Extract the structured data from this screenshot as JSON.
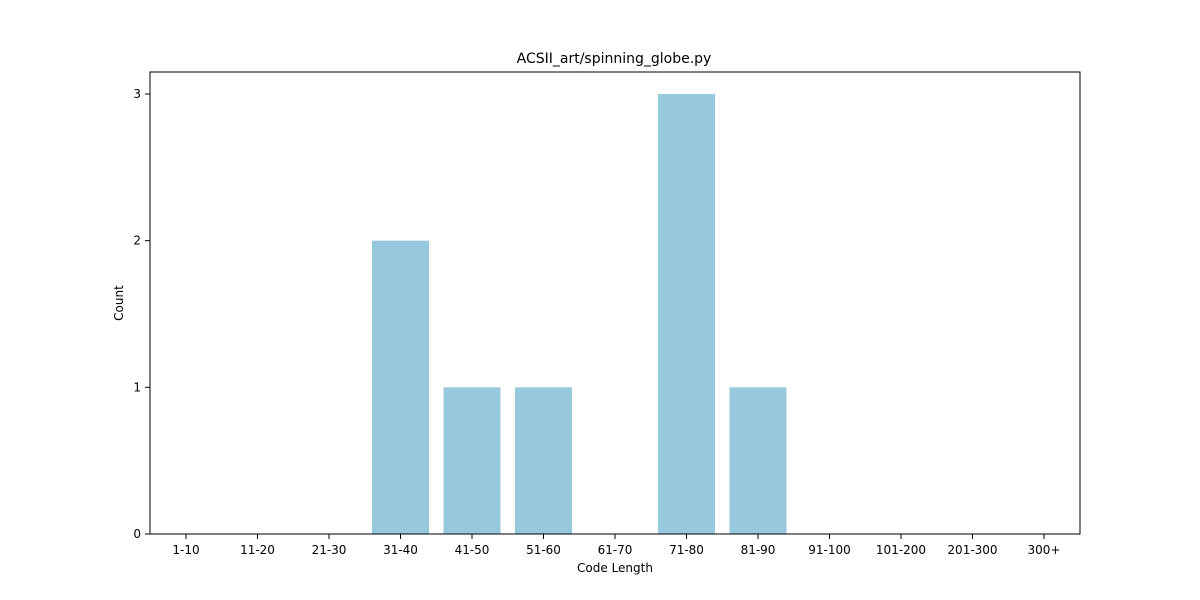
{
  "chart_data": {
    "type": "bar",
    "title": "ACSII_art/spinning_globe.py",
    "xlabel": "Code Length",
    "ylabel": "Count",
    "categories": [
      "1-10",
      "11-20",
      "21-30",
      "31-40",
      "41-50",
      "51-60",
      "61-70",
      "71-80",
      "81-90",
      "91-100",
      "101-200",
      "201-300",
      "300+"
    ],
    "values": [
      0,
      0,
      0,
      2,
      1,
      1,
      0,
      3,
      1,
      0,
      0,
      0,
      0
    ],
    "ylim": [
      0,
      3.15
    ],
    "yticks": [
      0,
      1,
      2,
      3
    ],
    "bar_color": "#96c9de",
    "grid": false
  }
}
